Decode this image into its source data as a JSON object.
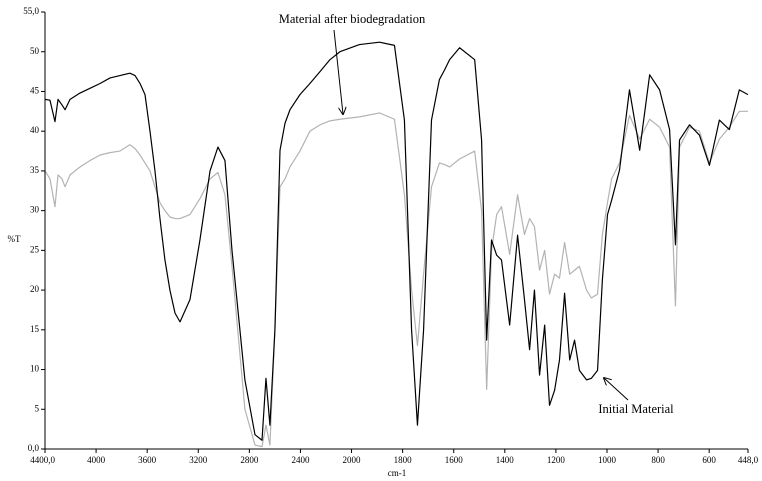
{
  "chart_data": {
    "type": "line",
    "xlabel": "cm-1",
    "ylabel": "%T",
    "xlim": [
      4400,
      448
    ],
    "ylim": [
      0,
      55
    ],
    "xticks": [
      {
        "value": 4400,
        "label": "4400,0"
      },
      4000,
      3600,
      3200,
      2800,
      2400,
      2000,
      1800,
      1600,
      1400,
      1200,
      1000,
      800,
      600,
      {
        "value": 448,
        "label": "448,0"
      }
    ],
    "yticks": [
      {
        "value": 0,
        "label": "0,0"
      },
      5,
      10,
      15,
      20,
      25,
      30,
      35,
      40,
      45,
      50,
      {
        "value": 55,
        "label": "55,0"
      }
    ],
    "grid": false,
    "x": [
      4400,
      4361,
      4322,
      4298,
      4267,
      4243,
      4204,
      4126,
      4048,
      3969,
      3891,
      3813,
      3735,
      3695,
      3656,
      3617,
      3578,
      3539,
      3500,
      3461,
      3422,
      3382,
      3343,
      3265,
      3187,
      3108,
      3046,
      2991,
      2936,
      2835,
      2756,
      2701,
      2670,
      2639,
      2600,
      2560,
      2521,
      2482,
      2404,
      2326,
      2247,
      2169,
      2091,
      1969,
      1890,
      1832,
      1793,
      1765,
      1742,
      1718,
      1687,
      1656,
      1636,
      1616,
      1577,
      1518,
      1491,
      1471,
      1452,
      1432,
      1413,
      1381,
      1350,
      1323,
      1303,
      1284,
      1264,
      1244,
      1225,
      1205,
      1186,
      1166,
      1146,
      1127,
      1108,
      1080,
      1061,
      1037,
      1018,
      998,
      982,
      951,
      912,
      872,
      833,
      794,
      755,
      732,
      716,
      677,
      638,
      599,
      560,
      521,
      482,
      448
    ],
    "series": [
      {
        "name": "Material after biodegradation",
        "color": "#b3b3b3",
        "values": [
          35,
          34,
          30.5,
          34.5,
          34,
          33,
          34.5,
          35.5,
          36.3,
          37,
          37.3,
          37.5,
          38.3,
          37.8,
          37,
          36,
          35,
          33,
          31,
          30,
          29.2,
          29,
          29,
          29.5,
          31.5,
          34,
          34.8,
          32,
          23,
          5,
          0.5,
          0.3,
          3,
          0.5,
          15,
          33,
          34,
          35.5,
          37.5,
          40,
          40.8,
          41.3,
          41.5,
          41.8,
          42.3,
          41.5,
          32,
          20,
          13,
          22,
          33,
          36,
          35.8,
          35.5,
          36.5,
          37.5,
          30,
          7.5,
          25,
          29.5,
          30.5,
          24.5,
          32,
          27,
          29,
          28,
          22.5,
          25,
          19.5,
          22,
          21.5,
          26,
          22,
          22.5,
          23,
          20,
          19,
          19.5,
          27,
          31,
          34,
          36,
          42,
          39,
          41.5,
          40.5,
          38,
          18,
          38,
          40.5,
          40,
          36,
          39,
          40.5,
          42.5,
          42.5
        ]
      },
      {
        "name": "Initial Material",
        "color": "#000000",
        "values": [
          44,
          43.9,
          41.2,
          44,
          43.3,
          42.7,
          44,
          44.8,
          45.4,
          46,
          46.7,
          47,
          47.3,
          47,
          46,
          44.6,
          40,
          35,
          29,
          23.8,
          20,
          17.1,
          16,
          18.8,
          26.3,
          35,
          38,
          36.3,
          25,
          8.7,
          1.8,
          1.1,
          8.9,
          3,
          15,
          37.6,
          41,
          42.7,
          44.6,
          46,
          47.5,
          49,
          50,
          50.9,
          51.2,
          50.8,
          41.4,
          15,
          3,
          15,
          41.4,
          46.5,
          47.7,
          49,
          50.5,
          49,
          38.9,
          13.7,
          26.3,
          24.4,
          23.8,
          15.6,
          26.9,
          18.8,
          12.5,
          20,
          9.3,
          15.6,
          5.5,
          7.4,
          11.2,
          19.6,
          11.2,
          13.7,
          9.9,
          8.7,
          8.9,
          9.9,
          21.3,
          29.5,
          31.3,
          35.1,
          45.2,
          37.6,
          47.1,
          45.2,
          40.2,
          25.7,
          38.9,
          40.8,
          39.5,
          35.7,
          41.4,
          40.2,
          45.2,
          44.6
        ]
      }
    ]
  }
}
